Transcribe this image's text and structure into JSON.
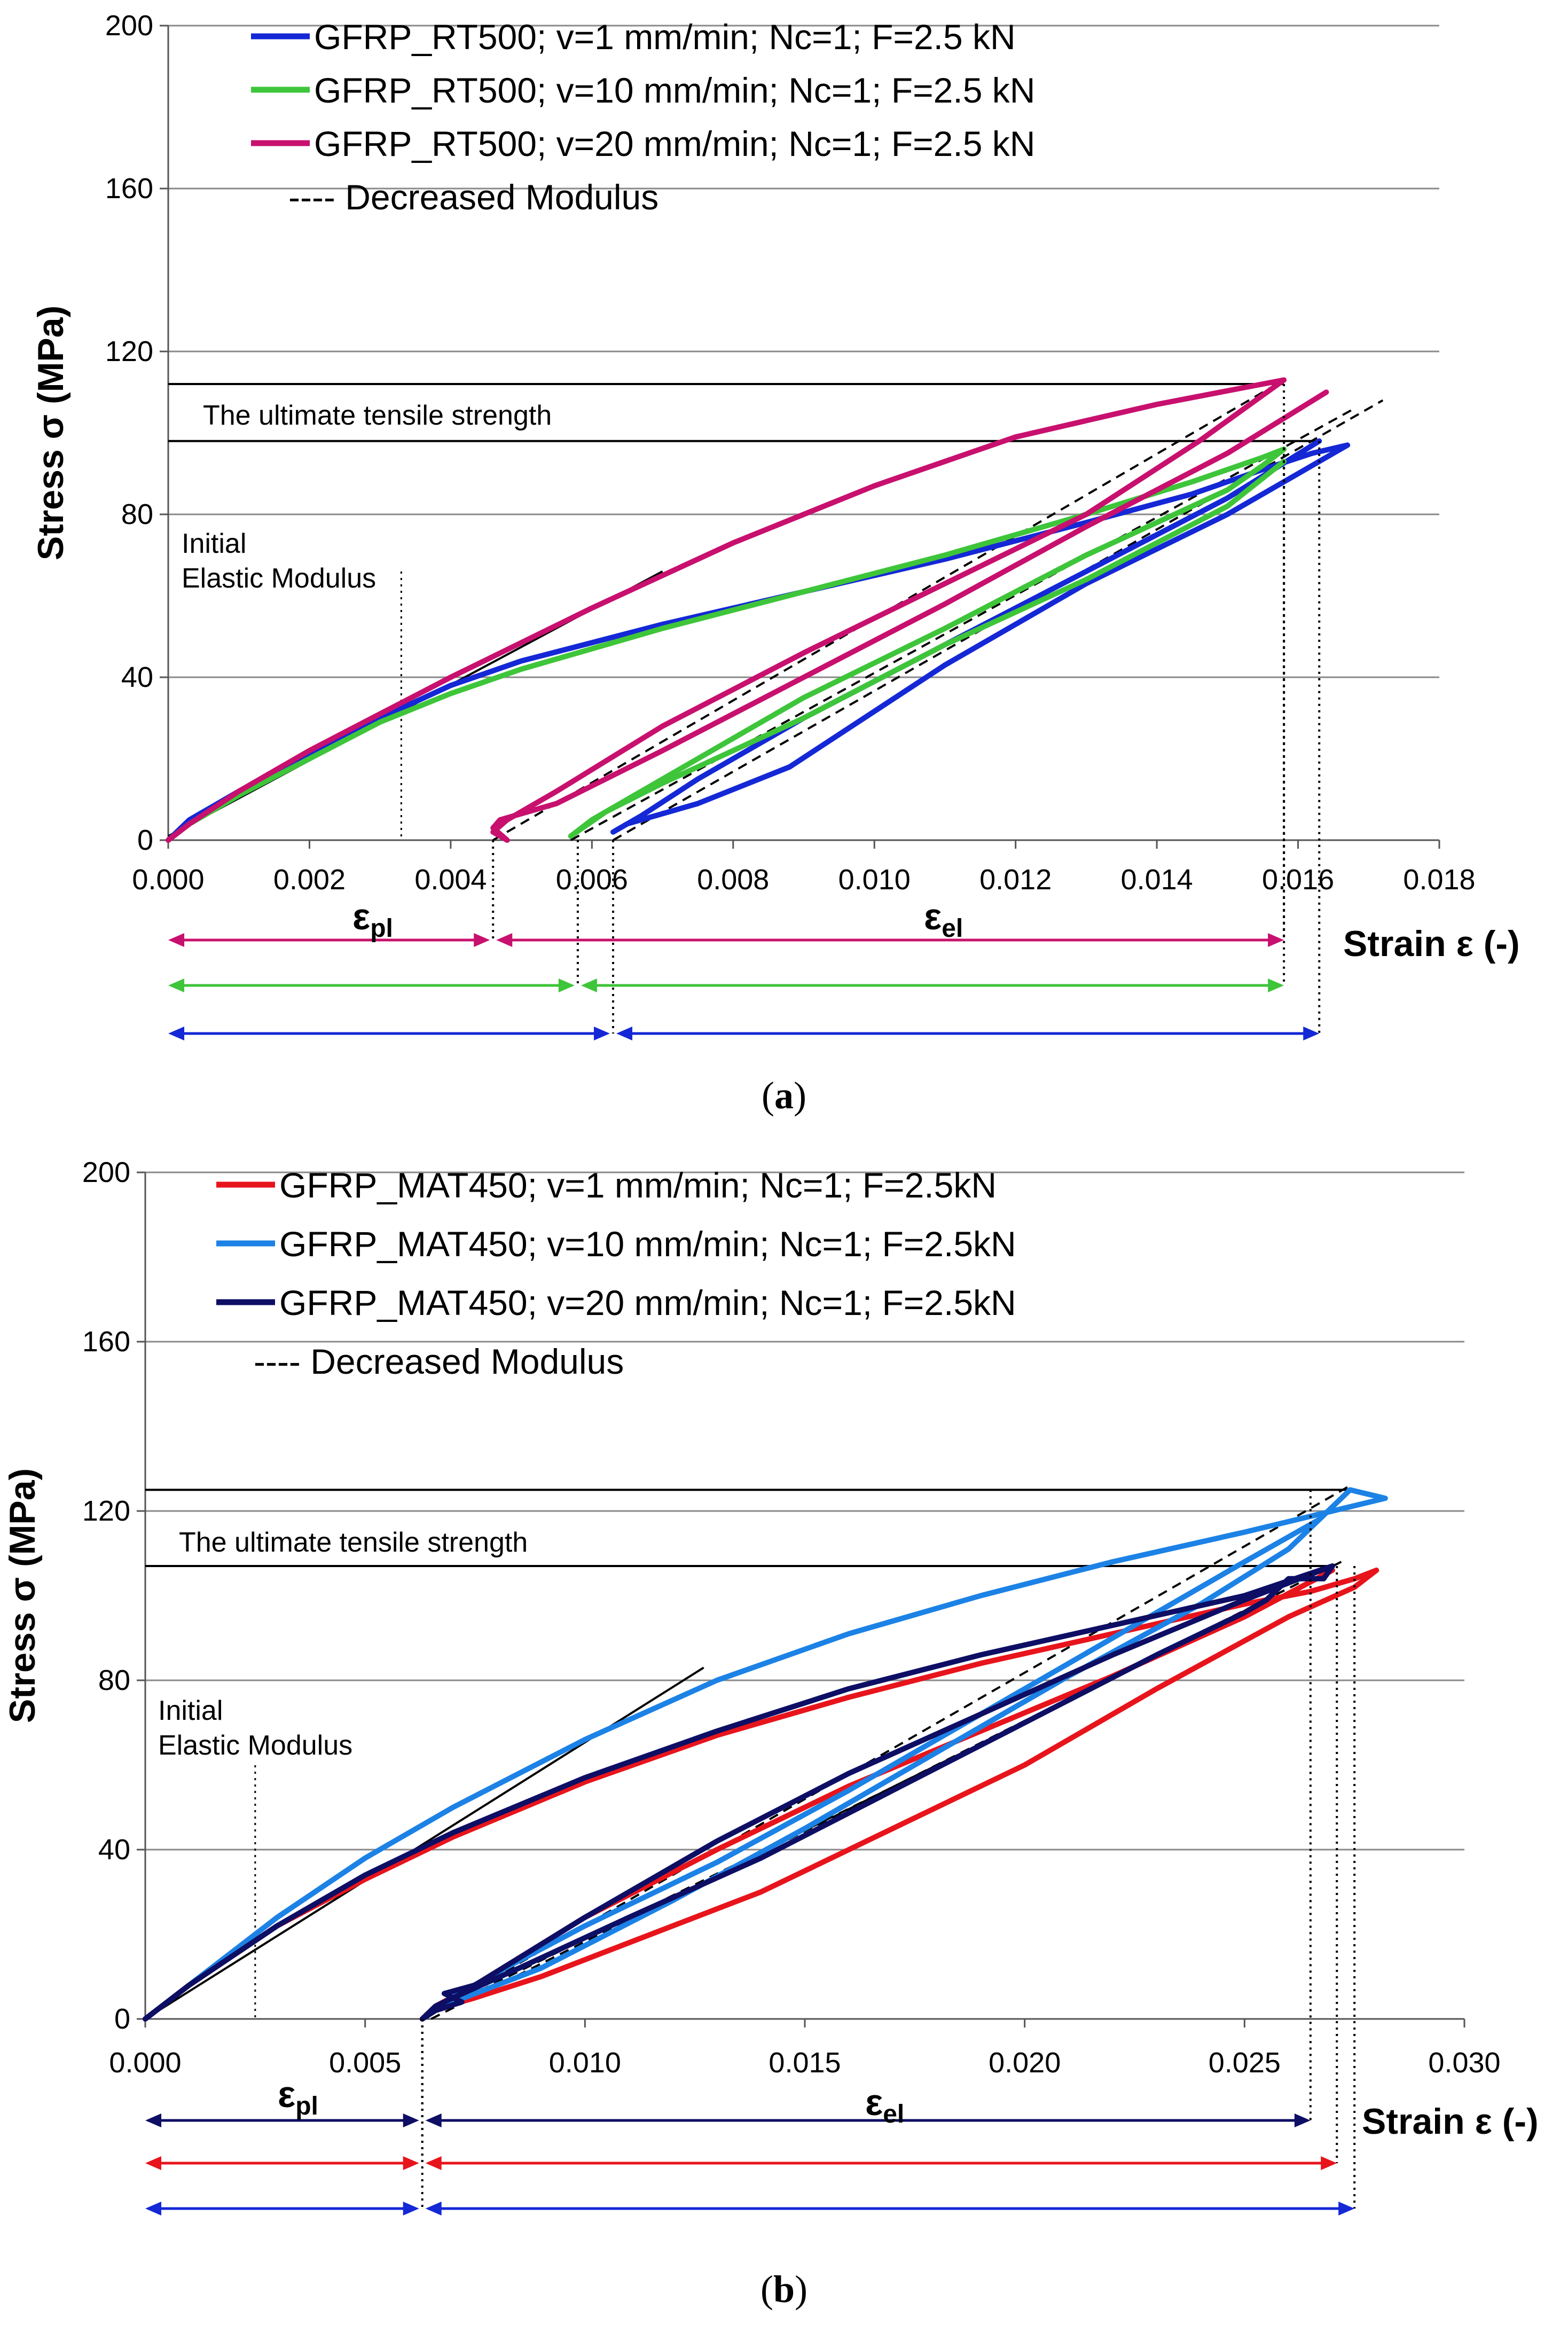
{
  "chart_data": [
    {
      "id": "a",
      "type": "line",
      "caption": "(a)",
      "ylabel": "Stress σ (MPa)",
      "xlabel": "Strain ε (-)",
      "xlim": [
        0,
        0.018
      ],
      "ylim": [
        0,
        200
      ],
      "x_ticks": [
        "0.000",
        "0.002",
        "0.004",
        "0.006",
        "0.008",
        "0.010",
        "0.012",
        "0.014",
        "0.016",
        "0.018"
      ],
      "y_ticks": [
        "0",
        "40",
        "80",
        "120",
        "160",
        "200"
      ],
      "legend_dash_label": "---- Decreased Modulus",
      "annotations": {
        "uts": "The ultimate tensile strength",
        "initial_1": "Initial",
        "initial_2": "Elastic Modulus",
        "eps_pl": "ε",
        "eps_pl_sub": "pl",
        "eps_el": "ε",
        "eps_el_sub": "el"
      },
      "uts_levels": [
        112,
        98
      ],
      "uts_strain": [
        0.0158,
        0.0163
      ],
      "initial_modulus_line": [
        [
          0.0,
          1
        ],
        [
          0.007,
          66
        ]
      ],
      "initial_marker_strain": 0.0033,
      "series": [
        {
          "name": "GFRP_RT500; v=1 mm/min; Nc=1; F=2.5 kN",
          "color": "#1428d6",
          "x": [
            0.0,
            0.0003,
            0.001,
            0.002,
            0.003,
            0.004,
            0.005,
            0.007,
            0.009,
            0.011,
            0.013,
            0.0145,
            0.0155,
            0.0162,
            0.0167,
            0.0165,
            0.016,
            0.015,
            0.013,
            0.011,
            0.0088,
            0.0075,
            0.0065,
            0.0063,
            0.0067,
            0.0075,
            0.009,
            0.011,
            0.013,
            0.015,
            0.0163
          ],
          "y": [
            0,
            5,
            12,
            21,
            30,
            38,
            44,
            53,
            61,
            69,
            78,
            85,
            91,
            95,
            97,
            95,
            90,
            80,
            63,
            43,
            18,
            9,
            4,
            2,
            6,
            15,
            30,
            48,
            66,
            84,
            98
          ]
        },
        {
          "name": "GFRP_RT500; v=10 mm/min; Nc=1; F=2.5 kN",
          "color": "#3ec53a",
          "x": [
            0.0,
            0.0003,
            0.001,
            0.002,
            0.003,
            0.004,
            0.005,
            0.007,
            0.009,
            0.011,
            0.013,
            0.0145,
            0.0155,
            0.0158,
            0.0155,
            0.015,
            0.013,
            0.011,
            0.009,
            0.007,
            0.006,
            0.0057,
            0.0062,
            0.007,
            0.009,
            0.011,
            0.013,
            0.015,
            0.0158
          ],
          "y": [
            0,
            4,
            11,
            20,
            29,
            36,
            42,
            52,
            61,
            70,
            80,
            88,
            94,
            96,
            92,
            86,
            70,
            52,
            35,
            15,
            5,
            1,
            7,
            14,
            30,
            48,
            64,
            82,
            93
          ]
        },
        {
          "name": "GFRP_RT500; v=20 mm/min; Nc=1; F=2.5 kN",
          "color": "#c8106e",
          "x": [
            0.0,
            0.0003,
            0.001,
            0.002,
            0.003,
            0.004,
            0.006,
            0.008,
            0.01,
            0.012,
            0.014,
            0.0152,
            0.0158,
            0.0154,
            0.0146,
            0.013,
            0.011,
            0.009,
            0.007,
            0.0055,
            0.0048,
            0.0046,
            0.0048,
            0.0046,
            0.0047,
            0.0055,
            0.007,
            0.009,
            0.011,
            0.013,
            0.015,
            0.0164
          ],
          "y": [
            0,
            4,
            12,
            22,
            31,
            40,
            57,
            73,
            87,
            99,
            107,
            111,
            113,
            108,
            98,
            80,
            63,
            46,
            28,
            12,
            5,
            2,
            0,
            3,
            5,
            9,
            22,
            40,
            58,
            77,
            95,
            110
          ]
        }
      ],
      "dashed_lines": [
        {
          "x": [
            0.0046,
            0.0158
          ],
          "y": [
            0,
            113
          ]
        },
        {
          "x": [
            0.0057,
            0.0168
          ],
          "y": [
            0,
            106
          ]
        },
        {
          "x": [
            0.0063,
            0.0172
          ],
          "y": [
            0,
            108
          ]
        }
      ],
      "arrows": [
        {
          "color": "#c8106e",
          "x0": 0.0,
          "xm": 0.0046,
          "x1": 0.0158
        },
        {
          "color": "#3ec53a",
          "x0": 0.0,
          "xm": 0.0058,
          "x1": 0.0158
        },
        {
          "color": "#1428d6",
          "x0": 0.0,
          "xm": 0.0063,
          "x1": 0.0163
        }
      ]
    },
    {
      "id": "b",
      "type": "line",
      "caption": "(b)",
      "ylabel": "Stress σ (MPa)",
      "xlabel": "Strain ε (-)",
      "xlim": [
        0,
        0.03
      ],
      "ylim": [
        0,
        200
      ],
      "x_ticks": [
        "0.000",
        "0.005",
        "0.010",
        "0.015",
        "0.020",
        "0.025",
        "0.030"
      ],
      "y_ticks": [
        "0",
        "40",
        "80",
        "120",
        "160",
        "200"
      ],
      "legend_dash_label": "---- Decreased Modulus",
      "annotations": {
        "uts": "The ultimate tensile strength",
        "initial_1": "Initial",
        "initial_2": "Elastic Modulus",
        "eps_pl": "ε",
        "eps_pl_sub": "pl",
        "eps_el": "ε",
        "eps_el_sub": "el"
      },
      "uts_levels": [
        125,
        107
      ],
      "uts_strain": [
        0.0274,
        0.027
      ],
      "initial_modulus_line": [
        [
          0.0,
          0
        ],
        [
          0.0127,
          83
        ]
      ],
      "initial_marker_strain": 0.0025,
      "series": [
        {
          "name": "GFRP_MAT450; v=1 mm/min; Nc=1; F=2.5kN",
          "color": "#e8141c",
          "x": [
            0.0,
            0.001,
            0.002,
            0.003,
            0.005,
            0.007,
            0.01,
            0.013,
            0.016,
            0.019,
            0.022,
            0.025,
            0.0265,
            0.0275,
            0.028,
            0.0275,
            0.026,
            0.023,
            0.02,
            0.017,
            0.014,
            0.011,
            0.009,
            0.0075,
            0.0065,
            0.0063,
            0.0066,
            0.0075,
            0.01,
            0.013,
            0.016,
            0.019,
            0.022,
            0.025,
            0.027
          ],
          "y": [
            0,
            8,
            15,
            22,
            33,
            43,
            56,
            67,
            76,
            84,
            91,
            98,
            101,
            104,
            106,
            102,
            95,
            78,
            60,
            45,
            30,
            18,
            10,
            5,
            2,
            0,
            3,
            8,
            24,
            40,
            55,
            68,
            81,
            95,
            106
          ]
        },
        {
          "name": "GFRP_MAT450; v=10 mm/min; Nc=1; F=2.5kN",
          "color": "#1c82e6",
          "x": [
            0.0,
            0.001,
            0.002,
            0.003,
            0.005,
            0.007,
            0.01,
            0.013,
            0.016,
            0.019,
            0.022,
            0.025,
            0.027,
            0.0282,
            0.0274,
            0.0267,
            0.025,
            0.022,
            0.019,
            0.016,
            0.013,
            0.01,
            0.008,
            0.0068,
            0.0064,
            0.007,
            0.009,
            0.012,
            0.015,
            0.018,
            0.021,
            0.024,
            0.026,
            0.0274
          ],
          "y": [
            0,
            8,
            16,
            24,
            38,
            50,
            66,
            80,
            91,
            100,
            108,
            115,
            120,
            123,
            125,
            118,
            108,
            90,
            72,
            54,
            37,
            22,
            11,
            4,
            1,
            4,
            12,
            28,
            45,
            63,
            81,
            98,
            111,
            125
          ]
        },
        {
          "name": "GFRP_MAT450; v=20 mm/min; Nc=1; F=2.5kN",
          "color": "#0d0e64",
          "x": [
            0.0,
            0.001,
            0.002,
            0.003,
            0.005,
            0.007,
            0.01,
            0.013,
            0.016,
            0.019,
            0.022,
            0.025,
            0.027,
            0.0268,
            0.026,
            0.0255,
            0.025,
            0.023,
            0.02,
            0.017,
            0.014,
            0.011,
            0.0085,
            0.007,
            0.0066,
            0.0063,
            0.0066,
            0.0072,
            0.0068,
            0.0075,
            0.01,
            0.013,
            0.016,
            0.019,
            0.022,
            0.025,
            0.027
          ],
          "y": [
            0,
            8,
            15,
            22,
            34,
            44,
            57,
            68,
            78,
            86,
            93,
            100,
            107,
            104,
            104,
            99,
            96,
            86,
            70,
            54,
            38,
            24,
            12,
            5,
            3,
            0,
            2,
            4,
            6,
            8,
            24,
            42,
            58,
            72,
            86,
            99,
            107
          ]
        }
      ],
      "dashed_lines": [
        {
          "x": [
            0.0063,
            0.0274
          ],
          "y": [
            0,
            126
          ]
        },
        {
          "x": [
            0.0065,
            0.0272
          ],
          "y": [
            0,
            108
          ]
        },
        {
          "x": [
            0.0063,
            0.027
          ],
          "y": [
            0,
            106
          ]
        }
      ],
      "arrows": [
        {
          "color": "#0d0e64",
          "x0": 0.0,
          "xm": 0.0063,
          "x1": 0.0265
        },
        {
          "color": "#e8141c",
          "x0": 0.0,
          "xm": 0.0063,
          "x1": 0.0271
        },
        {
          "color": "#1428d6",
          "x0": 0.0,
          "xm": 0.0063,
          "x1": 0.0275
        }
      ]
    }
  ]
}
